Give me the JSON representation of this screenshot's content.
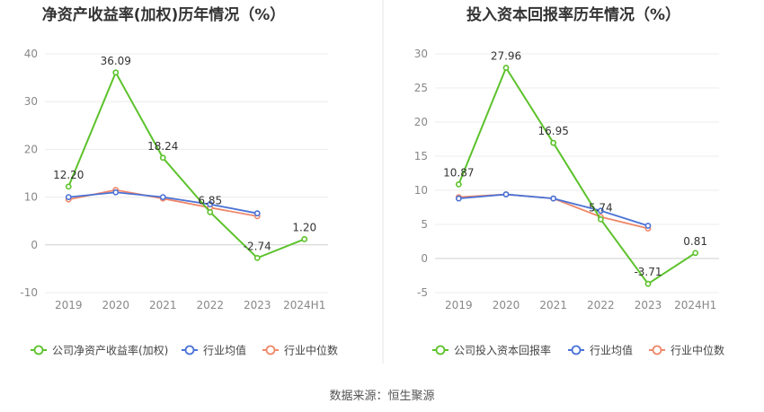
{
  "source_text": "数据来源：恒生聚源",
  "chart_data": [
    {
      "type": "line",
      "title": "净资产收益率(加权)历年情况（%）",
      "categories": [
        "2019",
        "2020",
        "2021",
        "2022",
        "2023",
        "2024H1"
      ],
      "ylim": [
        -10,
        40
      ],
      "yticks": [
        -10,
        0,
        10,
        20,
        30,
        40
      ],
      "grid": true,
      "legend_position": "bottom",
      "series": [
        {
          "name": "公司净资产收益率(加权)",
          "color": "#5cc22b",
          "values": [
            12.2,
            36.09,
            18.24,
            6.85,
            -2.74,
            1.2
          ],
          "labels": [
            "12.20",
            "36.09",
            "18.24",
            "6.85",
            "-2.74",
            "1.20"
          ]
        },
        {
          "name": "行业均值",
          "color": "#4a72d6",
          "values": [
            10.0,
            11.0,
            10.0,
            8.5,
            6.6,
            null
          ]
        },
        {
          "name": "行业中位数",
          "color": "#f0886a",
          "values": [
            9.5,
            11.5,
            9.7,
            7.8,
            6.0,
            null
          ]
        }
      ]
    },
    {
      "type": "line",
      "title": "投入资本回报率历年情况（%）",
      "categories": [
        "2019",
        "2020",
        "2021",
        "2022",
        "2023",
        "2024H1"
      ],
      "ylim": [
        -5,
        30
      ],
      "yticks": [
        -5,
        0,
        5,
        10,
        15,
        20,
        25,
        30
      ],
      "grid": true,
      "legend_position": "bottom",
      "series": [
        {
          "name": "公司投入资本回报率",
          "color": "#5cc22b",
          "values": [
            10.87,
            27.96,
            16.95,
            5.74,
            -3.71,
            0.81
          ],
          "labels": [
            "10.87",
            "27.96",
            "16.95",
            "5.74",
            "-3.71",
            "0.81"
          ]
        },
        {
          "name": "行业均值",
          "color": "#4a72d6",
          "values": [
            8.8,
            9.4,
            8.8,
            7.0,
            4.8,
            null
          ]
        },
        {
          "name": "行业中位数",
          "color": "#f0886a",
          "values": [
            9.0,
            9.4,
            8.8,
            6.1,
            4.4,
            null
          ]
        }
      ]
    }
  ]
}
